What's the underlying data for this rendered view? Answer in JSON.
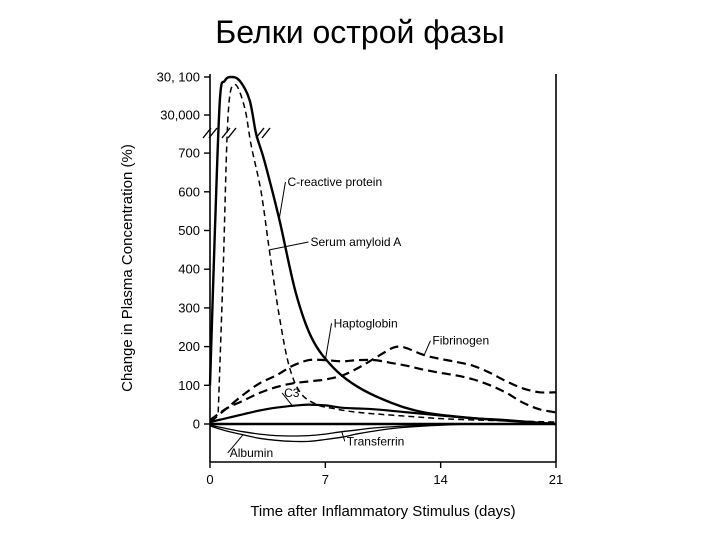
{
  "slide": {
    "title": "Белки острой фазы"
  },
  "chart_data": {
    "type": "line",
    "title": "",
    "xlabel": "Time after Inflammatory Stimulus (days)",
    "ylabel": "Change in Plasma Concentration (%)",
    "xlim": [
      0,
      21
    ],
    "x_ticks": [
      0,
      7,
      14,
      21
    ],
    "x_tick_labels": [
      "0",
      "7",
      "14",
      "21"
    ],
    "y_ticks_lower": [
      0,
      100,
      200,
      300,
      400,
      500,
      600,
      700
    ],
    "y_tick_labels_lower": [
      "0",
      "100",
      "200",
      "300",
      "400",
      "500",
      "600",
      "700"
    ],
    "y_ticks_upper": [
      30000,
      30100
    ],
    "y_tick_labels_upper": [
      "30,000",
      "30, 100"
    ],
    "y_axis_break": "between 700 and 30,000",
    "grid": false,
    "series": [
      {
        "name": "C-reactive protein",
        "style": "solid",
        "stroke": "#000000",
        "width": 2.4,
        "points": [
          [
            0,
            100
          ],
          [
            0.3,
            500
          ],
          [
            0.6,
            30040
          ],
          [
            0.9,
            30090
          ],
          [
            1.3,
            30100
          ],
          [
            1.8,
            30090
          ],
          [
            2.4,
            30040
          ],
          [
            2.8,
            750
          ],
          [
            3.3,
            680
          ],
          [
            4.2,
            530
          ],
          [
            5.2,
            340
          ],
          [
            6.2,
            220
          ],
          [
            7.5,
            145
          ],
          [
            9,
            95
          ],
          [
            11,
            55
          ],
          [
            13,
            30
          ],
          [
            16,
            15
          ],
          [
            21,
            0
          ]
        ]
      },
      {
        "name": "Serum amyloid A",
        "style": "dashed",
        "stroke": "#000000",
        "width": 1.5,
        "points": [
          [
            0.5,
            30
          ],
          [
            0.8,
            400
          ],
          [
            1.1,
            30000
          ],
          [
            1.5,
            30080
          ],
          [
            2.1,
            30020
          ],
          [
            2.5,
            720
          ],
          [
            3.1,
            600
          ],
          [
            3.6,
            450
          ],
          [
            4.2,
            280
          ],
          [
            4.8,
            150
          ],
          [
            5.5,
            80
          ],
          [
            6.5,
            50
          ],
          [
            7.5,
            40
          ],
          [
            9,
            30
          ],
          [
            12,
            20
          ],
          [
            15,
            12
          ],
          [
            21,
            5
          ]
        ]
      },
      {
        "name": "Haptoglobin",
        "style": "dashed",
        "stroke": "#000000",
        "width": 2.2,
        "points": [
          [
            0,
            5
          ],
          [
            1,
            40
          ],
          [
            2,
            75
          ],
          [
            3,
            105
          ],
          [
            4,
            125
          ],
          [
            5,
            150
          ],
          [
            6,
            165
          ],
          [
            7,
            165
          ],
          [
            8,
            162
          ],
          [
            9,
            165
          ],
          [
            10,
            165
          ],
          [
            11,
            158
          ],
          [
            12,
            150
          ],
          [
            13,
            140
          ],
          [
            14,
            132
          ],
          [
            15,
            125
          ],
          [
            16,
            115
          ],
          [
            17,
            100
          ],
          [
            18,
            80
          ],
          [
            19,
            55
          ],
          [
            20,
            38
          ],
          [
            21,
            30
          ]
        ]
      },
      {
        "name": "Fibrinogen",
        "style": "dashed",
        "stroke": "#000000",
        "width": 2.2,
        "points": [
          [
            0,
            10
          ],
          [
            1,
            40
          ],
          [
            2,
            60
          ],
          [
            3,
            80
          ],
          [
            4,
            95
          ],
          [
            5,
            105
          ],
          [
            6,
            110
          ],
          [
            7,
            115
          ],
          [
            8,
            125
          ],
          [
            9,
            145
          ],
          [
            10,
            170
          ],
          [
            11,
            195
          ],
          [
            11.5,
            200
          ],
          [
            12,
            195
          ],
          [
            13,
            178
          ],
          [
            14,
            168
          ],
          [
            15,
            160
          ],
          [
            16,
            150
          ],
          [
            17,
            132
          ],
          [
            18,
            110
          ],
          [
            19,
            92
          ],
          [
            20,
            82
          ],
          [
            21,
            82
          ]
        ]
      },
      {
        "name": "C3",
        "style": "solid",
        "stroke": "#000000",
        "width": 2.2,
        "points": [
          [
            0,
            5
          ],
          [
            1,
            15
          ],
          [
            2,
            25
          ],
          [
            3,
            35
          ],
          [
            4,
            42
          ],
          [
            5,
            47
          ],
          [
            6,
            50
          ],
          [
            7,
            48
          ],
          [
            8,
            42
          ],
          [
            9,
            40
          ],
          [
            10,
            38
          ],
          [
            12,
            30
          ],
          [
            14,
            22
          ],
          [
            16,
            15
          ],
          [
            18,
            10
          ],
          [
            21,
            0
          ]
        ]
      },
      {
        "name": "Albumin",
        "style": "solid",
        "stroke": "#000000",
        "width": 1.3,
        "points": [
          [
            0,
            -5
          ],
          [
            1,
            -18
          ],
          [
            2,
            -28
          ],
          [
            3,
            -37
          ],
          [
            4,
            -42
          ],
          [
            5,
            -45
          ],
          [
            6,
            -45
          ],
          [
            7,
            -40
          ],
          [
            8,
            -34
          ],
          [
            9,
            -25
          ],
          [
            10,
            -18
          ],
          [
            11,
            -12
          ],
          [
            12,
            -8
          ],
          [
            14,
            -3
          ],
          [
            16,
            0
          ],
          [
            18,
            0
          ],
          [
            21,
            0
          ]
        ]
      },
      {
        "name": "Transferrin",
        "style": "solid",
        "stroke": "#000000",
        "width": 1.3,
        "points": [
          [
            0,
            -3
          ],
          [
            1,
            -12
          ],
          [
            2,
            -20
          ],
          [
            3,
            -26
          ],
          [
            4,
            -30
          ],
          [
            5,
            -31
          ],
          [
            6,
            -30
          ],
          [
            7,
            -26
          ],
          [
            8,
            -20
          ],
          [
            9,
            -15
          ],
          [
            10,
            -10
          ],
          [
            12,
            -5
          ],
          [
            14,
            -2
          ],
          [
            16,
            0
          ],
          [
            21,
            0
          ]
        ]
      }
    ],
    "baseline": {
      "y": 0,
      "style": "solid"
    },
    "annotations": [
      {
        "text": "C-reactive protein",
        "series": "C-reactive protein",
        "at": [
          4.7,
          615
        ]
      },
      {
        "text": "Serum amyloid A",
        "series": "Serum amyloid A",
        "at": [
          6.1,
          460
        ]
      },
      {
        "text": "Haptoglobin",
        "series": "Haptoglobin",
        "at": [
          7.5,
          250
        ]
      },
      {
        "text": "Fibrinogen",
        "series": "Fibrinogen",
        "at": [
          13.5,
          205
        ]
      },
      {
        "text": "C3",
        "series": "C3",
        "at": [
          4.5,
          70
        ]
      },
      {
        "text": "Transferrin",
        "series": "Transferrin",
        "at": [
          8.3,
          -55
        ]
      },
      {
        "text": "Albumin",
        "series": "Albumin",
        "at": [
          1.2,
          -85
        ]
      }
    ]
  }
}
